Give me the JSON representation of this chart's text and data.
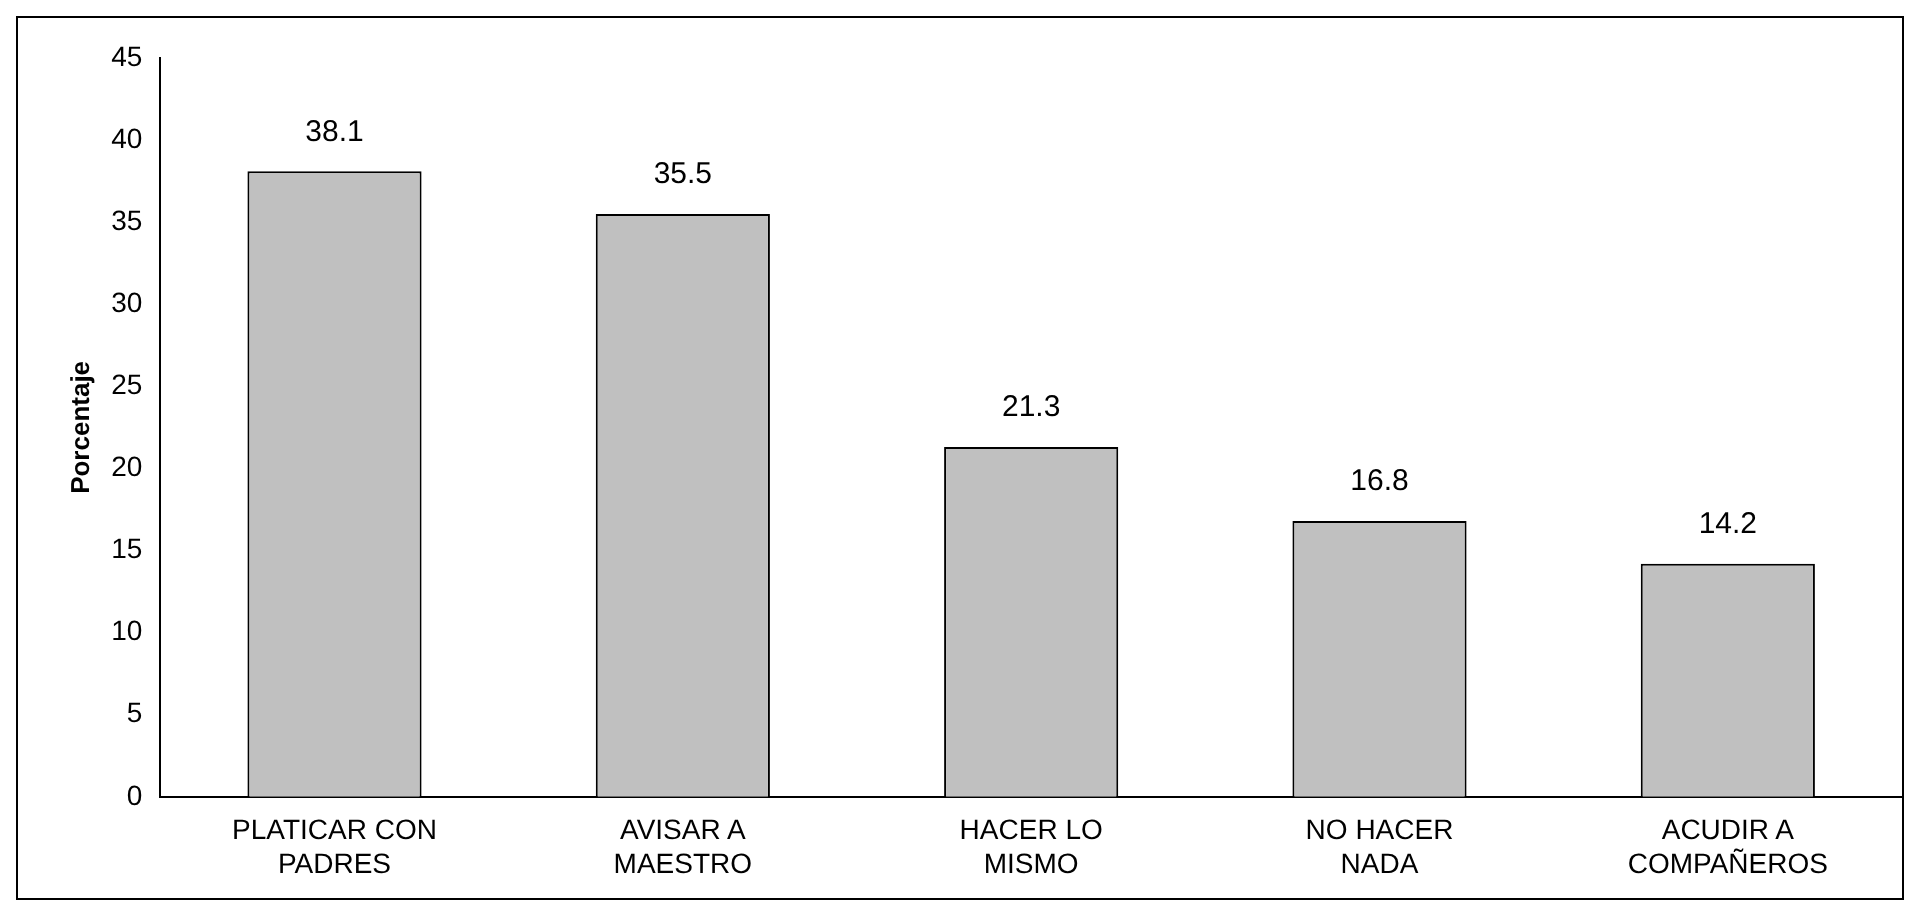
{
  "chart_data": {
    "type": "bar",
    "ylabel": "Porcentaje",
    "categories": [
      "PLATICAR CON PADRES",
      "AVISAR A MAESTRO",
      "HACER LO MISMO",
      "NO HACER NADA",
      "ACUDIR A COMPAÑEROS"
    ],
    "values": [
      38.1,
      35.5,
      21.3,
      16.8,
      14.2
    ],
    "color": "#c0c0c0",
    "ylim": [
      0,
      45
    ],
    "yticks": [
      0,
      5,
      10,
      15,
      20,
      25,
      30,
      35,
      40,
      45
    ],
    "data_labels": true
  }
}
